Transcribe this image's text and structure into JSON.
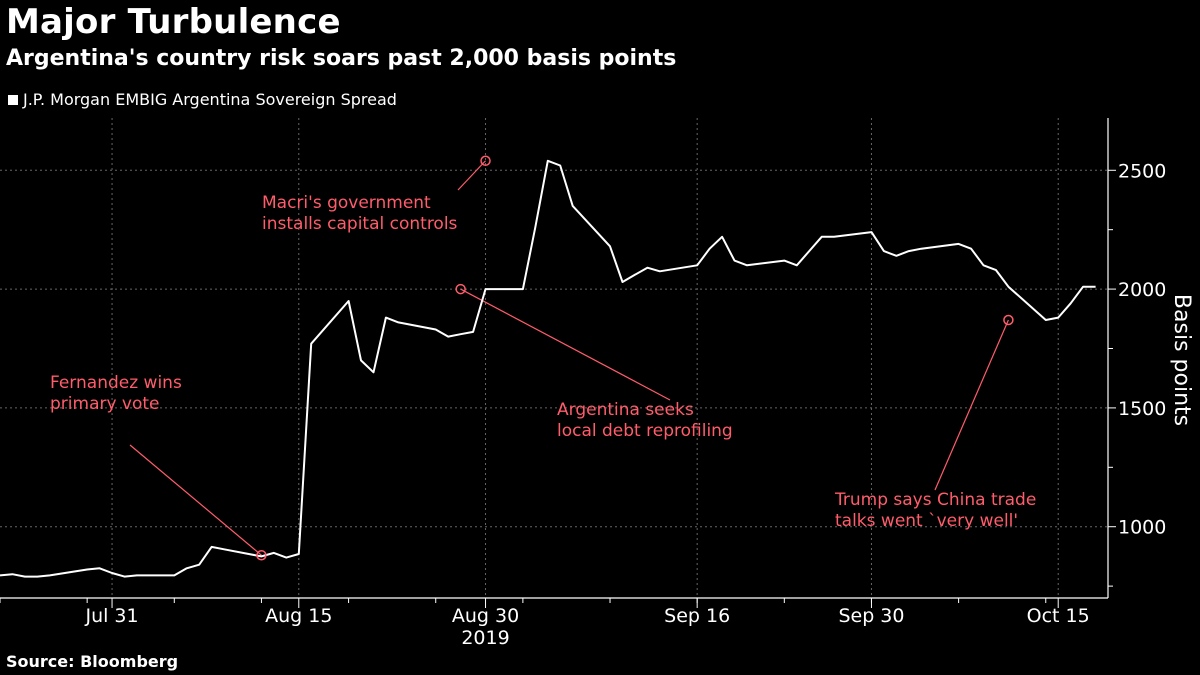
{
  "header": {
    "title": "Major Turbulence",
    "subtitle": "Argentina's country risk soars past 2,000 basis points"
  },
  "footer": {
    "source": "Source: Bloomberg"
  },
  "colors": {
    "background": "#000000",
    "line": "#ffffff",
    "annotation": "#ff5c6c",
    "grid": "#666666"
  },
  "chart_data": {
    "type": "line",
    "title": "Major Turbulence",
    "subtitle": "Argentina's country risk soars past 2,000 basis points",
    "ylabel": "Basis points",
    "xlabel": "",
    "year_label": "2019",
    "ylim": [
      700,
      2720
    ],
    "xlim": [
      "2019-07-22",
      "2019-10-19"
    ],
    "y_ticks": [
      1000,
      1500,
      2000,
      2500
    ],
    "y_tick_labels": [
      "1000",
      "1500",
      "2000",
      "2500"
    ],
    "x_ticks": [
      "2019-07-31",
      "2019-08-15",
      "2019-08-30",
      "2019-09-16",
      "2019-09-30",
      "2019-10-15"
    ],
    "x_tick_labels": [
      "Jul 31",
      "Aug 15",
      "Aug 30",
      "Sep 16",
      "Sep 30",
      "Oct 15"
    ],
    "grid": true,
    "legend_position": "top-left",
    "series": [
      {
        "name": "J.P. Morgan EMBIG Argentina Sovereign Spread",
        "x": [
          "2019-07-22",
          "2019-07-23",
          "2019-07-24",
          "2019-07-25",
          "2019-07-26",
          "2019-07-29",
          "2019-07-30",
          "2019-07-31",
          "2019-08-01",
          "2019-08-02",
          "2019-08-05",
          "2019-08-06",
          "2019-08-07",
          "2019-08-08",
          "2019-08-09",
          "2019-08-12",
          "2019-08-13",
          "2019-08-14",
          "2019-08-15",
          "2019-08-16",
          "2019-08-19",
          "2019-08-20",
          "2019-08-21",
          "2019-08-22",
          "2019-08-23",
          "2019-08-26",
          "2019-08-27",
          "2019-08-28",
          "2019-08-29",
          "2019-08-30",
          "2019-09-02",
          "2019-09-03",
          "2019-09-04",
          "2019-09-05",
          "2019-09-06",
          "2019-09-09",
          "2019-09-10",
          "2019-09-11",
          "2019-09-12",
          "2019-09-13",
          "2019-09-16",
          "2019-09-17",
          "2019-09-18",
          "2019-09-19",
          "2019-09-20",
          "2019-09-23",
          "2019-09-24",
          "2019-09-25",
          "2019-09-26",
          "2019-09-27",
          "2019-09-30",
          "2019-10-01",
          "2019-10-02",
          "2019-10-03",
          "2019-10-04",
          "2019-10-07",
          "2019-10-08",
          "2019-10-09",
          "2019-10-10",
          "2019-10-11",
          "2019-10-14",
          "2019-10-15",
          "2019-10-16",
          "2019-10-17",
          "2019-10-18"
        ],
        "values": [
          795,
          800,
          790,
          790,
          795,
          820,
          825,
          805,
          790,
          795,
          795,
          825,
          840,
          915,
          905,
          875,
          890,
          870,
          885,
          1770,
          1950,
          1700,
          1650,
          1880,
          1860,
          1830,
          1800,
          1810,
          1820,
          2000,
          2000,
          2260,
          2540,
          2520,
          2350,
          2180,
          2030,
          2060,
          2090,
          2075,
          2100,
          2170,
          2220,
          2120,
          2100,
          2120,
          2100,
          2160,
          2220,
          2220,
          2240,
          2160,
          2140,
          2160,
          2170,
          2190,
          2170,
          2100,
          2080,
          2010,
          1870,
          1880,
          1940,
          2010,
          2010
        ]
      }
    ],
    "annotations": [
      {
        "lines": [
          "Fernandez wins",
          "primary vote"
        ],
        "point": {
          "x": "2019-08-12",
          "y": 880
        }
      },
      {
        "lines": [
          "Macri's government",
          "installs capital controls"
        ],
        "point": {
          "x": "2019-08-30",
          "y": 2540
        }
      },
      {
        "lines": [
          "Argentina seeks",
          "local debt reprofiling"
        ],
        "point": {
          "x": "2019-08-28",
          "y": 2000
        }
      },
      {
        "lines": [
          "Trump says China trade",
          "talks went `very well'"
        ],
        "point": {
          "x": "2019-10-11",
          "y": 1870
        }
      }
    ]
  }
}
